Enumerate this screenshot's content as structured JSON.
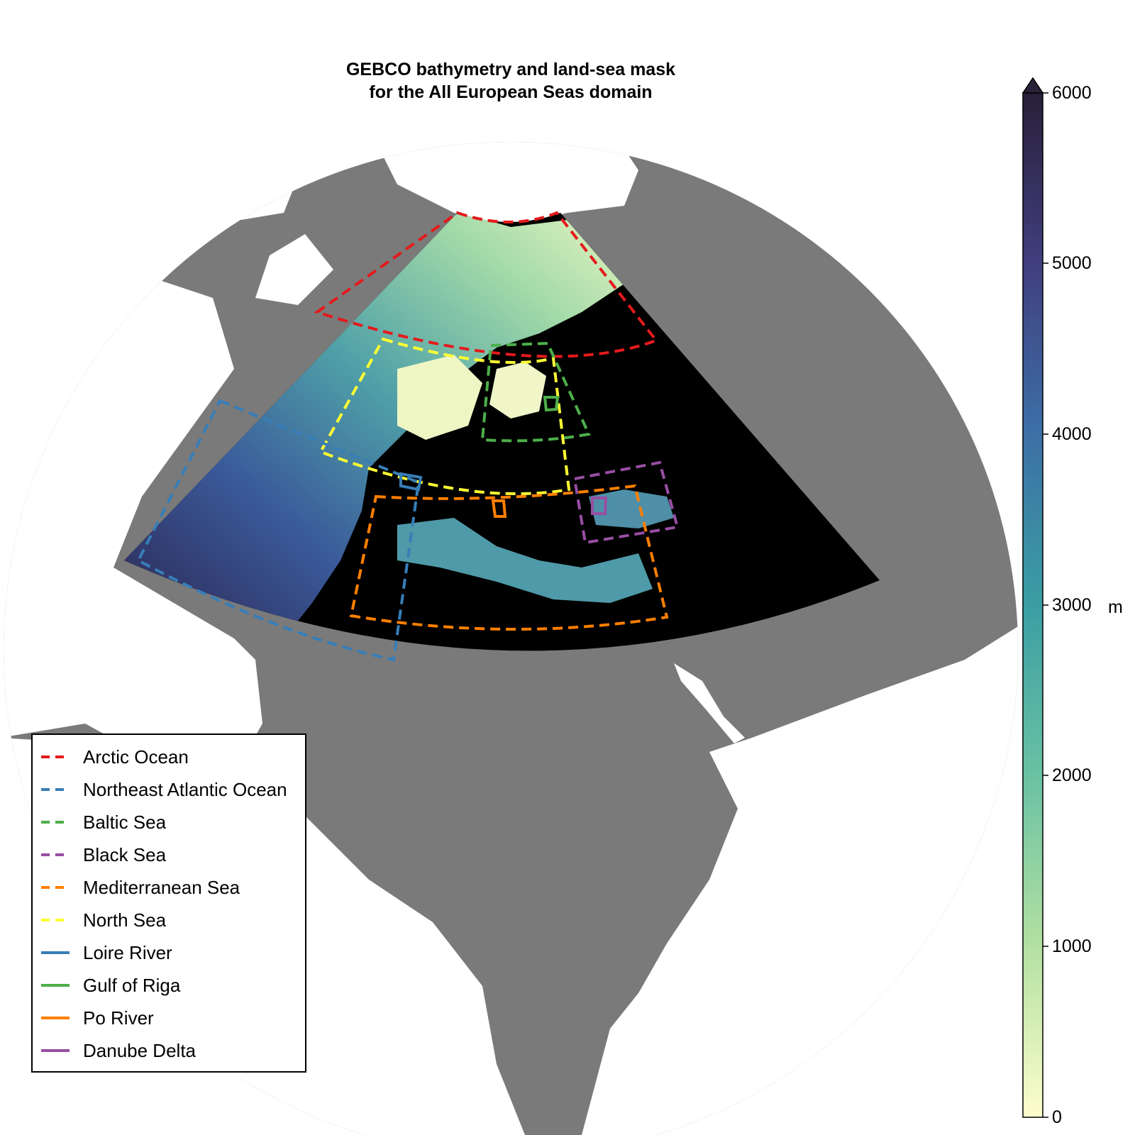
{
  "title_line1": "GEBCO bathymetry and land-sea mask",
  "title_line2": "for the All European Seas domain",
  "colorbar": {
    "ticks": [
      "6000",
      "5000",
      "4000",
      "3000",
      "2000",
      "1000",
      "0"
    ],
    "unit": "m",
    "min": 0,
    "max": 6000,
    "extend": "max",
    "colormap": "deep (yellow-green-blue-dark purple)"
  },
  "legend": {
    "items": [
      {
        "label": "Arctic Ocean",
        "color": "#e41a1c",
        "style": "dashed"
      },
      {
        "label": "Northeast Atlantic Ocean",
        "color": "#377eb8",
        "style": "dashed"
      },
      {
        "label": "Baltic Sea",
        "color": "#4daf4a",
        "style": "dashed"
      },
      {
        "label": "Black Sea",
        "color": "#984ea3",
        "style": "dashed"
      },
      {
        "label": "Mediterranean Sea",
        "color": "#ff7f00",
        "style": "dashed"
      },
      {
        "label": "North Sea",
        "color": "#ffff33",
        "style": "dashed"
      },
      {
        "label": "Loire River",
        "color": "#377eb8",
        "style": "solid"
      },
      {
        "label": "Gulf of Riga",
        "color": "#4daf4a",
        "style": "solid"
      },
      {
        "label": "Po River",
        "color": "#ff7f00",
        "style": "solid"
      },
      {
        "label": "Danube Delta",
        "color": "#984ea3",
        "style": "solid"
      }
    ]
  },
  "colors": {
    "land": "#7a7a7a",
    "ice": "#ffffff",
    "domain_background": "#000000"
  }
}
